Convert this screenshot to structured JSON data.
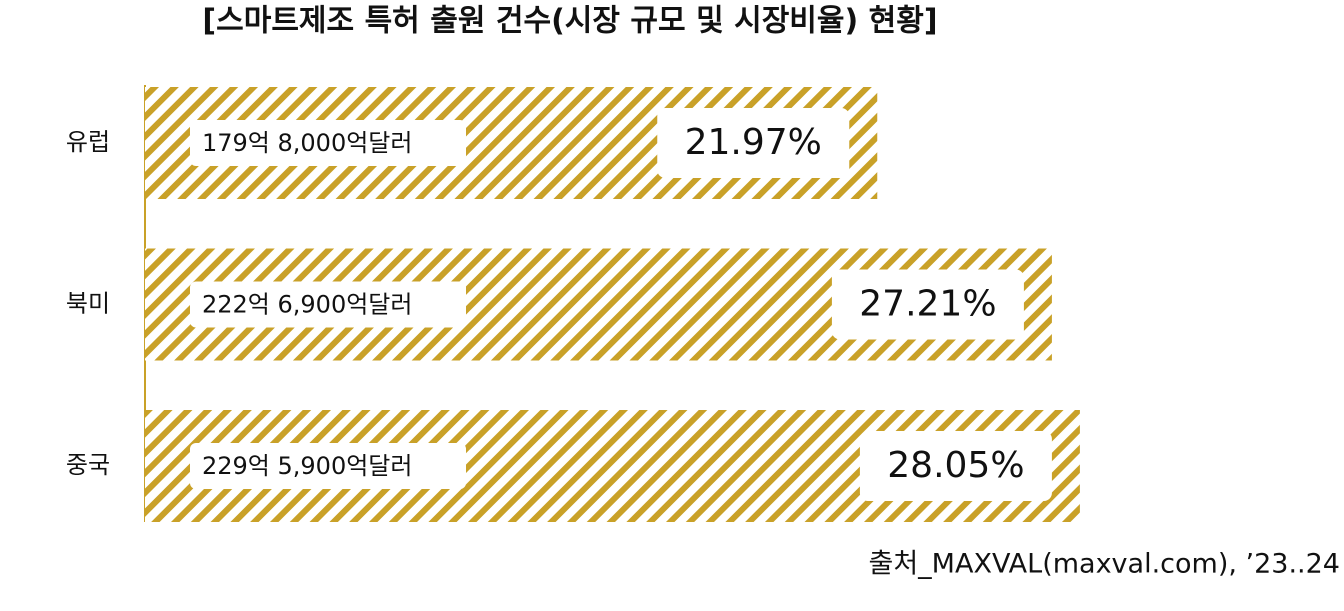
{
  "chart_data": {
    "type": "bar",
    "orientation": "horizontal",
    "title": "[스마트제조 특허 출원 건수(시장 규모 및 시장비율) 현황]",
    "categories": [
      "유럽",
      "북미",
      "중국"
    ],
    "values": [
      21.97,
      27.21,
      28.05
    ],
    "value_labels": [
      "21.97%",
      "27.21%",
      "28.05%"
    ],
    "size_labels": [
      "179억 8,000억달러",
      "222억 6,900억달러",
      "229억 5,900억달러"
    ],
    "color": "#c9a128",
    "source": "출처_MAXVAL(maxval.com), ’23..24"
  }
}
